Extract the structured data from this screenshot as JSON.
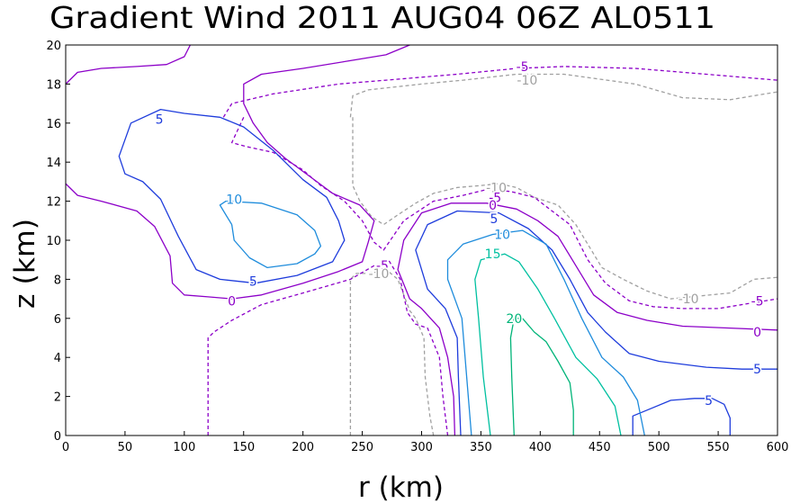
{
  "chart_data": {
    "type": "contour",
    "title": "Gradient Wind 2011 AUG04 06Z  AL0511",
    "xlabel": "r (km)",
    "ylabel": "z (km)",
    "xlim": [
      0,
      600
    ],
    "ylim": [
      0,
      20
    ],
    "x_ticks": [
      0,
      50,
      100,
      150,
      200,
      250,
      300,
      350,
      400,
      450,
      500,
      550,
      600
    ],
    "y_ticks": [
      0,
      2,
      4,
      6,
      8,
      10,
      12,
      14,
      16,
      18,
      20
    ],
    "level_colors": {
      "-10": "#a0a0a0",
      "-5": "#8c00c8",
      "0": "#8c00c8",
      "5": "#1e3cdc",
      "10": "#1e8cdc",
      "15": "#00c0a0",
      "20": "#00b478"
    },
    "contours": [
      {
        "level": -10,
        "dashed": true,
        "points": [
          [
            240,
            0
          ],
          [
            240,
            8
          ],
          [
            245,
            8.3
          ],
          [
            255,
            8.3
          ],
          [
            265,
            8.4
          ]
        ]
      },
      {
        "level": -10,
        "dashed": true,
        "points": [
          [
            310,
            0
          ],
          [
            307,
            1
          ],
          [
            303,
            3
          ],
          [
            302,
            5
          ],
          [
            295,
            6
          ],
          [
            290,
            6.4
          ],
          [
            280,
            8
          ],
          [
            272,
            8.4
          ]
        ]
      },
      {
        "level": -10,
        "dashed": true,
        "points": [
          [
            240,
            16.3
          ],
          [
            242,
            17.4
          ],
          [
            255,
            17.7
          ],
          [
            300,
            18
          ],
          [
            335,
            18.2
          ],
          [
            380,
            18.5
          ],
          [
            420,
            18.5
          ],
          [
            480,
            18
          ],
          [
            520,
            17.3
          ],
          [
            560,
            17.2
          ],
          [
            600,
            17.6
          ]
        ]
      },
      {
        "level": -10,
        "dashed": true,
        "points": [
          [
            242,
            16.3
          ],
          [
            242,
            12.8
          ],
          [
            248,
            12
          ],
          [
            258,
            11.2
          ],
          [
            268,
            10.8
          ],
          [
            280,
            11.3
          ],
          [
            295,
            11.9
          ],
          [
            310,
            12.4
          ],
          [
            330,
            12.7
          ],
          [
            350,
            12.8
          ],
          [
            365,
            12.9
          ],
          [
            380,
            12.7
          ],
          [
            395,
            12.2
          ],
          [
            415,
            11.8
          ],
          [
            430,
            10.8
          ],
          [
            440,
            9.8
          ],
          [
            452,
            8.6
          ],
          [
            470,
            8
          ],
          [
            490,
            7.4
          ],
          [
            510,
            7
          ],
          [
            560,
            7.3
          ],
          [
            580,
            8
          ],
          [
            600,
            8.1
          ]
        ]
      },
      {
        "level": -5,
        "dashed": true,
        "points": [
          [
            120,
            0
          ],
          [
            120,
            5
          ],
          [
            125,
            5.3
          ],
          [
            140,
            5.9
          ],
          [
            165,
            6.7
          ],
          [
            200,
            7.3
          ],
          [
            240,
            8
          ],
          [
            260,
            8.7
          ]
        ]
      },
      {
        "level": -5,
        "dashed": true,
        "points": [
          [
            322,
            0
          ],
          [
            318,
            2
          ],
          [
            315,
            4
          ],
          [
            305,
            5.5
          ],
          [
            295,
            5.7
          ],
          [
            288,
            6.3
          ],
          [
            282,
            8
          ],
          [
            272,
            9
          ]
        ]
      },
      {
        "level": -5,
        "dashed": true,
        "points": [
          [
            133,
            16.3
          ],
          [
            140,
            17
          ],
          [
            175,
            17.5
          ],
          [
            230,
            18
          ],
          [
            270,
            18.2
          ],
          [
            330,
            18.5
          ],
          [
            380,
            18.8
          ],
          [
            420,
            18.9
          ],
          [
            480,
            18.8
          ],
          [
            540,
            18.5
          ],
          [
            600,
            18.2
          ]
        ]
      },
      {
        "level": -5,
        "dashed": true,
        "points": [
          [
            150,
            16.3
          ],
          [
            140,
            15
          ],
          [
            152,
            14.8
          ],
          [
            175,
            14.5
          ],
          [
            200,
            13.6
          ],
          [
            215,
            12.8
          ],
          [
            235,
            12
          ],
          [
            250,
            11
          ],
          [
            260,
            9.9
          ],
          [
            268,
            9.5
          ],
          [
            285,
            11
          ],
          [
            310,
            12
          ],
          [
            335,
            12.3
          ],
          [
            355,
            12.6
          ],
          [
            375,
            12.5
          ],
          [
            395,
            12.2
          ],
          [
            410,
            11.5
          ],
          [
            425,
            10.8
          ],
          [
            440,
            9
          ],
          [
            455,
            7.8
          ],
          [
            475,
            6.9
          ],
          [
            495,
            6.6
          ],
          [
            520,
            6.5
          ],
          [
            550,
            6.5
          ],
          [
            580,
            6.8
          ],
          [
            600,
            7
          ]
        ]
      },
      {
        "level": 0,
        "dashed": false,
        "points": [
          [
            0,
            18
          ],
          [
            10,
            18.6
          ],
          [
            30,
            18.8
          ],
          [
            60,
            18.9
          ],
          [
            85,
            19
          ],
          [
            100,
            19.4
          ],
          [
            105,
            20
          ]
        ]
      },
      {
        "level": 0,
        "dashed": false,
        "points": [
          [
            0,
            12.9
          ],
          [
            10,
            12.3
          ],
          [
            30,
            12
          ],
          [
            60,
            11.5
          ],
          [
            75,
            10.7
          ],
          [
            88,
            9.2
          ],
          [
            90,
            7.8
          ],
          [
            100,
            7.2
          ],
          [
            120,
            7.1
          ],
          [
            140,
            7
          ],
          [
            165,
            7.2
          ],
          [
            200,
            7.8
          ],
          [
            230,
            8.4
          ],
          [
            250,
            8.9
          ],
          [
            255,
            9.9
          ],
          [
            260,
            11
          ],
          [
            248,
            11.8
          ],
          [
            225,
            12.4
          ],
          [
            205,
            13.3
          ],
          [
            185,
            14.2
          ],
          [
            170,
            15
          ],
          [
            158,
            16
          ],
          [
            150,
            17
          ],
          [
            150,
            18
          ],
          [
            165,
            18.5
          ],
          [
            200,
            18.8
          ],
          [
            240,
            19.2
          ],
          [
            270,
            19.5
          ],
          [
            290,
            20
          ]
        ]
      },
      {
        "level": 0,
        "dashed": false,
        "points": [
          [
            328,
            0
          ],
          [
            327,
            2
          ],
          [
            322,
            4
          ],
          [
            315,
            5.5
          ],
          [
            300,
            6.5
          ],
          [
            290,
            7
          ],
          [
            280,
            8.5
          ],
          [
            285,
            10
          ],
          [
            300,
            11.4
          ],
          [
            325,
            11.9
          ],
          [
            355,
            11.9
          ],
          [
            380,
            11.6
          ],
          [
            398,
            11
          ],
          [
            415,
            10.2
          ],
          [
            430,
            8.7
          ],
          [
            445,
            7.2
          ],
          [
            465,
            6.3
          ],
          [
            490,
            5.9
          ],
          [
            520,
            5.6
          ],
          [
            560,
            5.5
          ],
          [
            600,
            5.4
          ]
        ]
      },
      {
        "level": 5,
        "dashed": false,
        "points": [
          [
            100,
            16.5
          ],
          [
            80,
            16.7
          ],
          [
            55,
            16
          ],
          [
            45,
            14.3
          ],
          [
            50,
            13.4
          ],
          [
            65,
            13
          ],
          [
            80,
            12.1
          ],
          [
            95,
            10.2
          ],
          [
            110,
            8.5
          ],
          [
            130,
            8
          ],
          [
            160,
            7.8
          ],
          [
            195,
            8.2
          ],
          [
            225,
            8.9
          ],
          [
            235,
            10
          ],
          [
            230,
            11
          ],
          [
            220,
            12.2
          ],
          [
            200,
            13.1
          ],
          [
            175,
            14.6
          ],
          [
            150,
            15.8
          ],
          [
            130,
            16.3
          ],
          [
            100,
            16.5
          ]
        ]
      },
      {
        "level": 5,
        "dashed": false,
        "points": [
          [
            333,
            0
          ],
          [
            331,
            3
          ],
          [
            330,
            5
          ],
          [
            320,
            6.5
          ],
          [
            305,
            7.5
          ],
          [
            295,
            9.5
          ],
          [
            305,
            10.8
          ],
          [
            330,
            11.5
          ],
          [
            365,
            11.4
          ],
          [
            390,
            10.6
          ],
          [
            410,
            9.5
          ],
          [
            425,
            8
          ],
          [
            440,
            6.3
          ],
          [
            455,
            5.3
          ],
          [
            475,
            4.2
          ],
          [
            500,
            3.8
          ],
          [
            540,
            3.5
          ],
          [
            570,
            3.4
          ],
          [
            600,
            3.4
          ]
        ]
      },
      {
        "level": 5,
        "dashed": false,
        "points": [
          [
            478,
            0
          ],
          [
            478,
            1
          ],
          [
            490,
            1.3
          ],
          [
            510,
            1.8
          ],
          [
            530,
            1.9
          ],
          [
            545,
            1.9
          ],
          [
            555,
            1.6
          ],
          [
            560,
            0.9
          ],
          [
            560,
            0
          ]
        ]
      },
      {
        "level": 10,
        "dashed": false,
        "points": [
          [
            140,
            10.8
          ],
          [
            130,
            11.8
          ],
          [
            135,
            12
          ],
          [
            165,
            11.9
          ],
          [
            195,
            11.3
          ],
          [
            210,
            10.5
          ],
          [
            215,
            9.7
          ],
          [
            210,
            9.3
          ],
          [
            195,
            8.8
          ],
          [
            170,
            8.6
          ],
          [
            155,
            9.1
          ],
          [
            142,
            10
          ],
          [
            140,
            10.8
          ]
        ]
      },
      {
        "level": 10,
        "dashed": false,
        "points": [
          [
            342,
            0
          ],
          [
            338,
            3
          ],
          [
            334,
            6
          ],
          [
            322,
            8
          ],
          [
            322,
            9
          ],
          [
            335,
            9.8
          ],
          [
            360,
            10.3
          ],
          [
            385,
            10.5
          ],
          [
            405,
            9.8
          ],
          [
            420,
            8
          ],
          [
            435,
            6
          ],
          [
            452,
            4
          ],
          [
            470,
            3
          ],
          [
            482,
            1.8
          ],
          [
            488,
            0
          ]
        ]
      },
      {
        "level": 15,
        "dashed": false,
        "points": [
          [
            358,
            0
          ],
          [
            352,
            3
          ],
          [
            348,
            6
          ],
          [
            345,
            8
          ],
          [
            350,
            9
          ],
          [
            370,
            9.3
          ],
          [
            382,
            8.9
          ],
          [
            398,
            7.5
          ],
          [
            412,
            6
          ],
          [
            430,
            4
          ],
          [
            448,
            2.9
          ],
          [
            463,
            1.5
          ],
          [
            468,
            0
          ]
        ]
      },
      {
        "level": 20,
        "dashed": false,
        "points": [
          [
            378,
            0
          ],
          [
            376,
            3
          ],
          [
            375,
            5
          ],
          [
            378,
            6
          ],
          [
            385,
            6
          ],
          [
            395,
            5.3
          ],
          [
            405,
            4.8
          ],
          [
            415,
            3.8
          ],
          [
            425,
            2.7
          ],
          [
            428,
            1.3
          ],
          [
            428,
            0
          ]
        ]
      }
    ],
    "contour_labels": [
      {
        "text": "-5",
        "x": 385,
        "y": 18.9,
        "level": -5
      },
      {
        "text": "-10",
        "x": 389,
        "y": 18.2,
        "level": -10
      },
      {
        "text": "5",
        "x": 79,
        "y": 16.2,
        "level": 5
      },
      {
        "text": "10",
        "x": 142,
        "y": 12.1,
        "level": 10
      },
      {
        "text": "-10",
        "x": 363,
        "y": 12.7,
        "level": -10
      },
      {
        "text": "-5",
        "x": 362,
        "y": 12.2,
        "level": -5
      },
      {
        "text": "0",
        "x": 360,
        "y": 11.8,
        "level": 0
      },
      {
        "text": "5",
        "x": 361,
        "y": 11.1,
        "level": 5
      },
      {
        "text": "10",
        "x": 368,
        "y": 10.3,
        "level": 10
      },
      {
        "text": "15",
        "x": 360,
        "y": 9.3,
        "level": 15
      },
      {
        "text": "-5",
        "x": 267,
        "y": 8.7,
        "level": -5
      },
      {
        "text": "-10",
        "x": 264,
        "y": 8.3,
        "level": -10
      },
      {
        "text": "5",
        "x": 158,
        "y": 7.9,
        "level": 5
      },
      {
        "text": "0",
        "x": 140,
        "y": 6.9,
        "level": 0
      },
      {
        "text": "20",
        "x": 378,
        "y": 6,
        "level": 20
      },
      {
        "text": "-10",
        "x": 525,
        "y": 7,
        "level": -10
      },
      {
        "text": "-5",
        "x": 583,
        "y": 6.9,
        "level": -5
      },
      {
        "text": "0",
        "x": 583,
        "y": 5.3,
        "level": 0
      },
      {
        "text": "5",
        "x": 583,
        "y": 3.4,
        "level": 5
      },
      {
        "text": "5",
        "x": 542,
        "y": 1.8,
        "level": 5
      }
    ]
  }
}
